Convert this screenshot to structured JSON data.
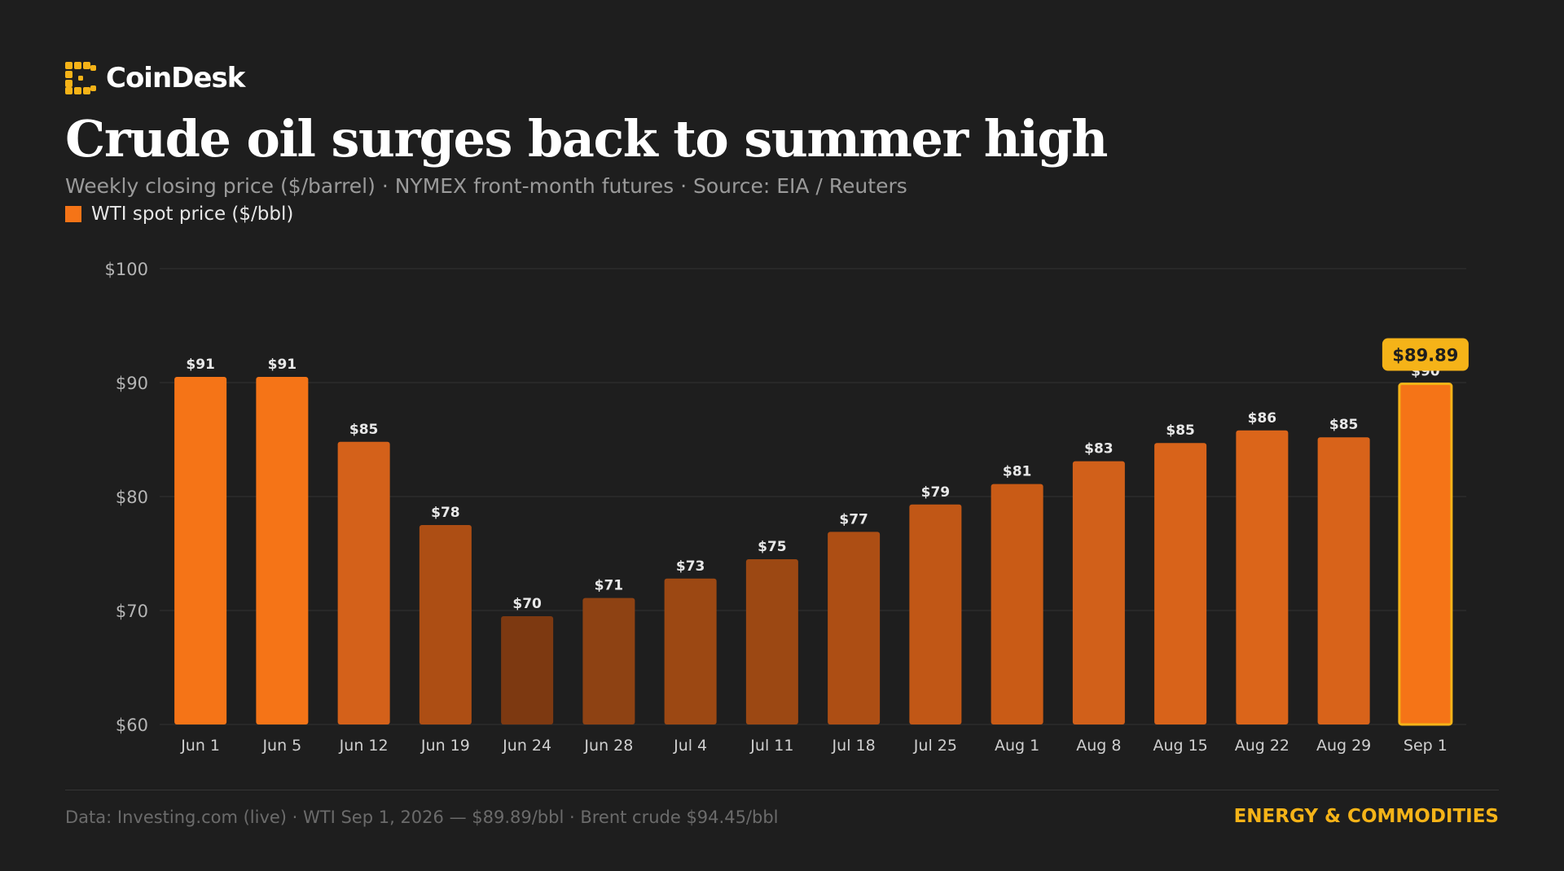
{
  "brand": {
    "name": "CoinDesk",
    "logo_icon": "coindesk-logo-icon"
  },
  "title": "Crude oil surges back to summer high",
  "subtitle": "Weekly closing price ($/barrel) · NYMEX front-month futures · Source: EIA / Reuters",
  "legend": {
    "label": "WTI spot price ($/bbl)",
    "color": "#f57417"
  },
  "chart_data": {
    "type": "bar",
    "categories": [
      "Jun 1",
      "Jun 5",
      "Jun 12",
      "Jun 19",
      "Jun 24",
      "Jun 28",
      "Jul 4",
      "Jul 11",
      "Jul 18",
      "Jul 25",
      "Aug 1",
      "Aug 8",
      "Aug 15",
      "Aug 22",
      "Aug 29",
      "Sep 1"
    ],
    "series": [
      {
        "name": "WTI spot price ($/bbl)",
        "values": [
          90.5,
          90.5,
          84.8,
          77.5,
          69.5,
          71.1,
          72.8,
          74.5,
          76.9,
          79.3,
          81.1,
          83.1,
          84.7,
          85.8,
          85.2,
          89.89
        ]
      }
    ],
    "data_labels": [
      "$91",
      "$91",
      "$85",
      "$78",
      "$70",
      "$71",
      "$73",
      "$75",
      "$77",
      "$79",
      "$81",
      "$83",
      "$85",
      "$86",
      "$85",
      "$90"
    ],
    "y_ticks": [
      60,
      70,
      80,
      90,
      100
    ],
    "y_tick_labels": [
      "$60",
      "$70",
      "$80",
      "$90",
      "$100"
    ],
    "ylim": [
      60,
      100
    ],
    "grid": true,
    "highlight": {
      "index": 15,
      "label": "$89.89",
      "badge_color": "#f5b318",
      "border_color": "#f5b318"
    },
    "bar_colors": [
      "#f57417",
      "#f57417",
      "#d4611a",
      "#ad4e14",
      "#7d3911",
      "#8e4213",
      "#9c4813",
      "#9c4813",
      "#ad4e14",
      "#c15716",
      "#c95b16",
      "#d1601a",
      "#d8631a",
      "#db651a",
      "#d8631a",
      "#f57417"
    ]
  },
  "footer": {
    "source": "Data: Investing.com (live) · WTI Sep 1, 2026 — $89.89/bbl · Brent crude $94.45/bbl",
    "section": "ENERGY & COMMODITIES"
  },
  "colors": {
    "background": "#1e1e1e",
    "accent": "#f5b318",
    "bar": "#f57417"
  }
}
